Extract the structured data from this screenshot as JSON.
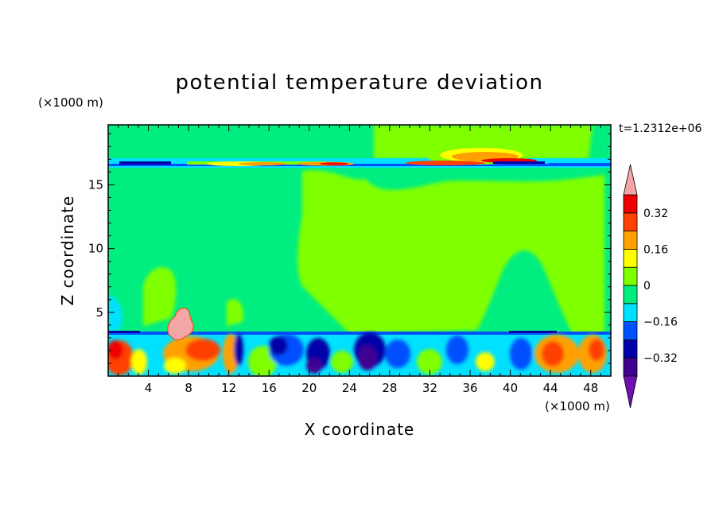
{
  "chart_data": {
    "type": "heatmap",
    "title": "potential temperature deviation",
    "xlabel": "X coordinate",
    "ylabel": "Z coordinate",
    "x_unit": "(×1000 m)",
    "y_unit": "(×1000 m)",
    "time_label": "t=1.2312e+06",
    "xlim": [
      0,
      50
    ],
    "ylim": [
      0,
      19.7
    ],
    "x_ticks": [
      4,
      8,
      12,
      16,
      20,
      24,
      28,
      32,
      36,
      40,
      44,
      48
    ],
    "y_ticks": [
      5,
      10,
      15
    ],
    "colorbar": {
      "levels": [
        -0.4,
        -0.32,
        -0.24,
        -0.16,
        -0.08,
        0,
        0.08,
        0.16,
        0.24,
        0.32,
        0.4
      ],
      "labels": [
        "0.32",
        "0.16",
        "0",
        "−0.16",
        "−0.32"
      ],
      "label_values": [
        0.32,
        0.16,
        0,
        -0.16,
        -0.32
      ],
      "colors_low_to_high": [
        "#400090",
        "#0000a8",
        "#0050ff",
        "#00e0ff",
        "#00ee80",
        "#80ff00",
        "#ffff00",
        "#ffa000",
        "#ff4000",
        "#ee0000"
      ],
      "under_color": "#7010b0",
      "over_color": "#f4a6a6"
    }
  }
}
